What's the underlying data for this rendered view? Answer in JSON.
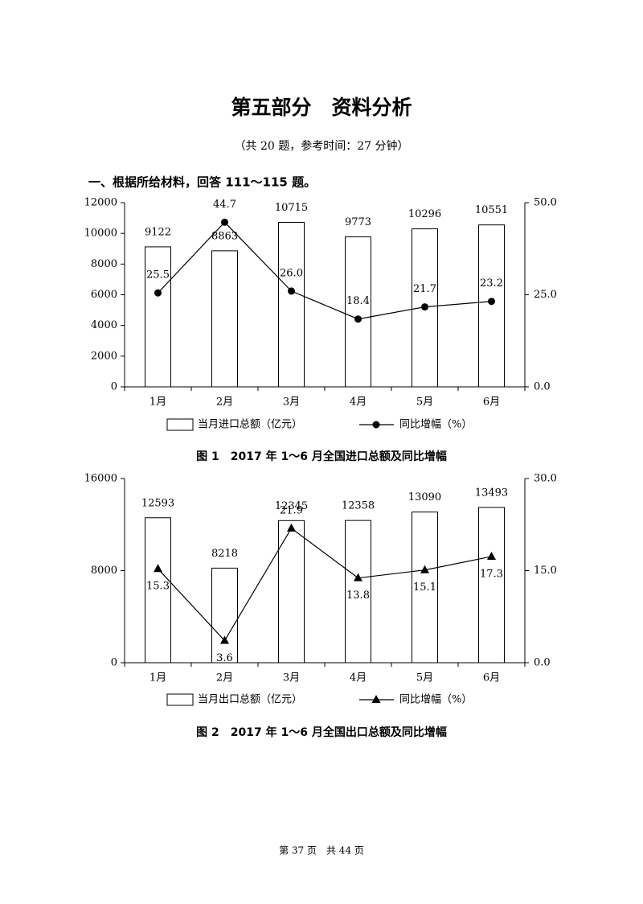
{
  "header": {
    "title": "第五部分　资料分析",
    "subtitle": "（共 20 题，参考时间：27 分钟）",
    "section": "一、根据所给材料，回答 111～115 题。"
  },
  "footer": "第 37 页　共 44 页",
  "chart_data": [
    {
      "type": "bar-line",
      "title": "图 1　2017 年 1～6 月全国进口总额及同比增幅",
      "categories": [
        "1月",
        "2月",
        "3月",
        "4月",
        "5月",
        "6月"
      ],
      "series": [
        {
          "name": "当月进口总额（亿元）",
          "color": "#000000",
          "values": [
            9122,
            8863,
            10715,
            9773,
            10296,
            10551
          ]
        },
        {
          "name": "同比增幅（%）",
          "color": "#000000",
          "axis": "y2",
          "marker": "circle",
          "values": [
            25.5,
            44.7,
            26.0,
            18.4,
            21.7,
            23.2
          ],
          "value_labels": [
            "25.5",
            "44.7",
            "26.0",
            "18.4",
            "21.7",
            "23.2"
          ]
        }
      ],
      "ylim": [
        0,
        12000
      ],
      "yticks": [
        0,
        2000,
        4000,
        6000,
        8000,
        10000,
        12000
      ],
      "y2lim": [
        0,
        50
      ],
      "y2ticks": [
        {
          "value": 0,
          "label": "0.0"
        },
        {
          "value": 25,
          "label": "25.0"
        },
        {
          "value": 50,
          "label": "50.0"
        }
      ]
    },
    {
      "type": "bar-line",
      "title": "图 2　2017 年 1～6 月全国出口总额及同比增幅",
      "categories": [
        "1月",
        "2月",
        "3月",
        "4月",
        "5月",
        "6月"
      ],
      "series": [
        {
          "name": "当月出口总额（亿元）",
          "color": "#000000",
          "values": [
            12593,
            8218,
            12345,
            12358,
            13090,
            13493
          ]
        },
        {
          "name": "同比增幅（%）",
          "color": "#000000",
          "axis": "y2",
          "marker": "triangle",
          "values": [
            15.3,
            3.6,
            21.9,
            13.8,
            15.1,
            17.3
          ],
          "value_labels": [
            "15.3",
            "3.6",
            "21.9",
            "13.8",
            "15.1",
            "17.3"
          ]
        }
      ],
      "ylim": [
        0,
        16000
      ],
      "yticks": [
        0,
        8000,
        16000
      ],
      "y2lim": [
        0,
        30
      ],
      "y2ticks": [
        {
          "value": 0,
          "label": "0.0"
        },
        {
          "value": 15,
          "label": "15.0"
        },
        {
          "value": 30,
          "label": "30.0"
        }
      ]
    }
  ]
}
